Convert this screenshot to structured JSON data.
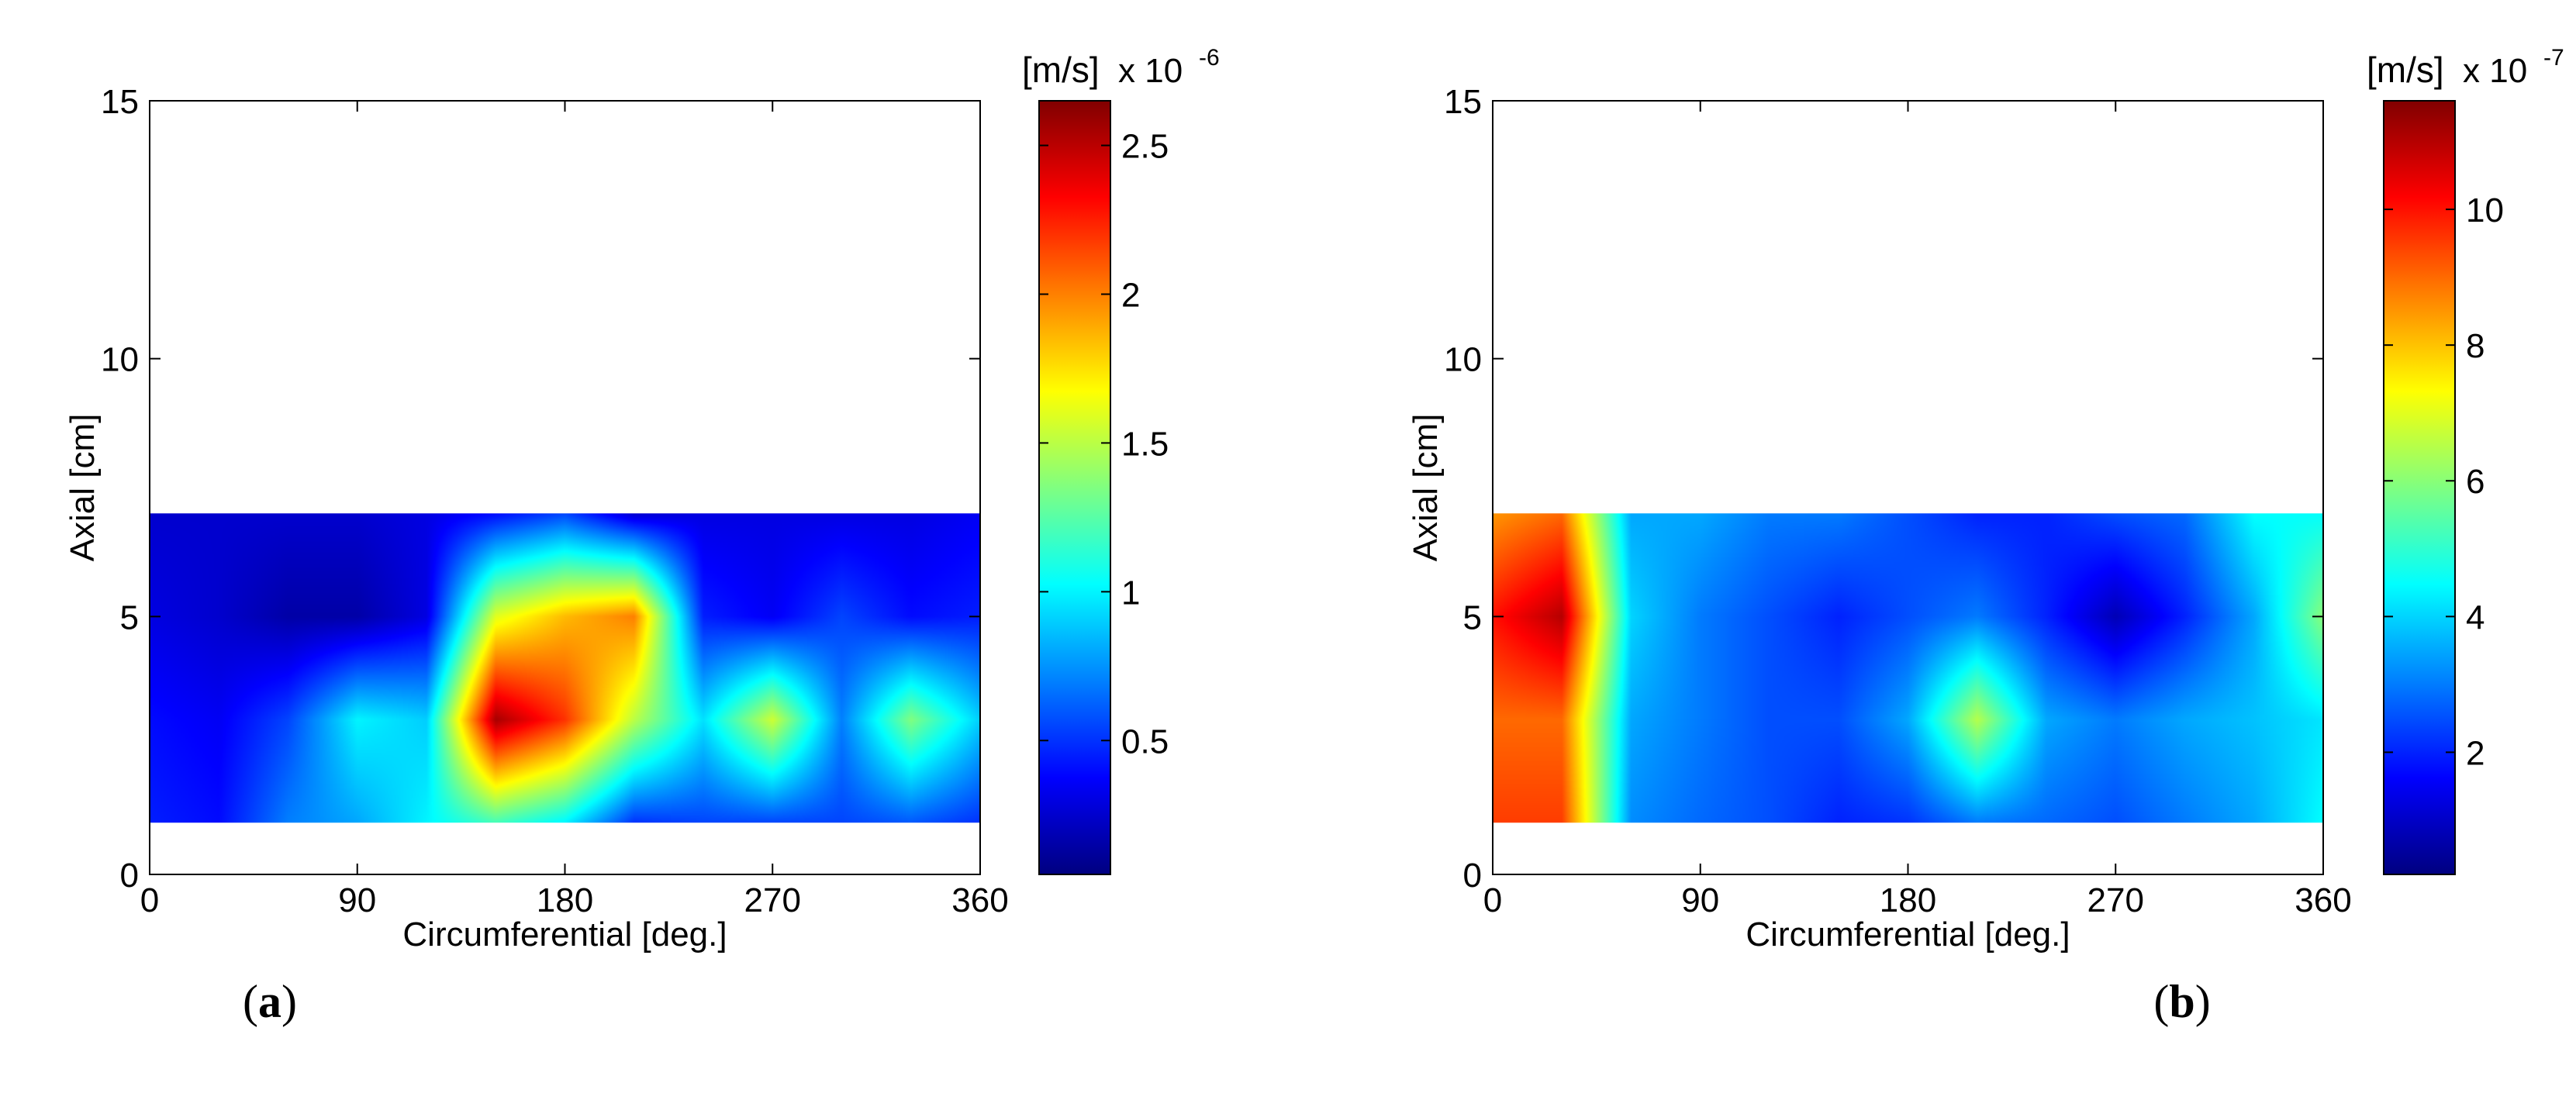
{
  "chart_data": [
    {
      "panel": "(a)",
      "type": "heatmap",
      "xlabel": "Circumferential [deg.]",
      "ylabel": "Axial [cm]",
      "xlim": [
        0,
        360
      ],
      "ylim": [
        0,
        15
      ],
      "xticks": [
        0,
        90,
        180,
        270,
        360
      ],
      "yticks": [
        0,
        5,
        10,
        15
      ],
      "colormap": "jet",
      "colorbar": {
        "label": "[m/s]",
        "multiplier": "x 10",
        "exponent": "-6",
        "range": [
          0.05,
          2.65
        ],
        "ticks": [
          0.5,
          1,
          1.5,
          2,
          2.5
        ]
      },
      "data_region": {
        "x": [
          0,
          360
        ],
        "y": [
          1,
          7
        ]
      },
      "grid_x": [
        0,
        30,
        60,
        90,
        120,
        150,
        180,
        210,
        240,
        270,
        300,
        330,
        360
      ],
      "grid_y": [
        1,
        3,
        5,
        7
      ],
      "values": [
        [
          0.45,
          0.4,
          0.7,
          0.8,
          1.0,
          1.2,
          1.0,
          0.5,
          0.55,
          0.55,
          0.55,
          0.6,
          0.5
        ],
        [
          0.4,
          0.35,
          0.55,
          1.0,
          0.9,
          2.55,
          2.2,
          1.5,
          0.95,
          1.55,
          0.7,
          1.35,
          0.9
        ],
        [
          0.3,
          0.25,
          0.15,
          0.15,
          0.3,
          1.6,
          1.85,
          2.0,
          0.45,
          0.35,
          0.55,
          0.4,
          0.45
        ],
        [
          0.25,
          0.25,
          0.25,
          0.25,
          0.3,
          0.4,
          0.55,
          0.25,
          0.3,
          0.3,
          0.3,
          0.3,
          0.35
        ]
      ]
    },
    {
      "panel": "(b)",
      "type": "heatmap",
      "xlabel": "Circumferential [deg.]",
      "ylabel": "Axial [cm]",
      "xlim": [
        0,
        360
      ],
      "ylim": [
        0,
        15
      ],
      "xticks": [
        0,
        90,
        180,
        270,
        360
      ],
      "yticks": [
        0,
        5,
        10,
        15
      ],
      "colormap": "jet",
      "colorbar": {
        "label": "[m/s]",
        "multiplier": "x 10",
        "exponent": "-7",
        "range": [
          0.2,
          11.6
        ],
        "ticks": [
          2,
          4,
          6,
          8,
          10
        ]
      },
      "data_region": {
        "x": [
          0,
          360
        ],
        "y": [
          1,
          7
        ]
      },
      "grid_x": [
        0,
        30,
        60,
        90,
        120,
        150,
        180,
        210,
        240,
        270,
        300,
        330,
        360
      ],
      "grid_y": [
        1,
        3,
        5,
        7
      ],
      "values": [
        [
          9.5,
          9.5,
          3.2,
          2.8,
          2.5,
          2.0,
          2.2,
          3.0,
          2.8,
          2.5,
          3.0,
          3.5,
          4.5
        ],
        [
          9.0,
          9.0,
          3.5,
          3.0,
          2.5,
          2.5,
          3.5,
          6.5,
          3.5,
          3.0,
          3.5,
          3.8,
          4.2
        ],
        [
          10.0,
          11.0,
          4.0,
          3.0,
          2.5,
          2.0,
          2.5,
          3.0,
          2.0,
          0.8,
          2.0,
          3.5,
          6.0
        ],
        [
          8.5,
          9.0,
          3.5,
          3.5,
          3.0,
          3.0,
          2.5,
          2.0,
          2.0,
          2.5,
          2.8,
          4.5,
          4.5
        ]
      ]
    }
  ],
  "captions": {
    "a": "a",
    "b": "b"
  }
}
